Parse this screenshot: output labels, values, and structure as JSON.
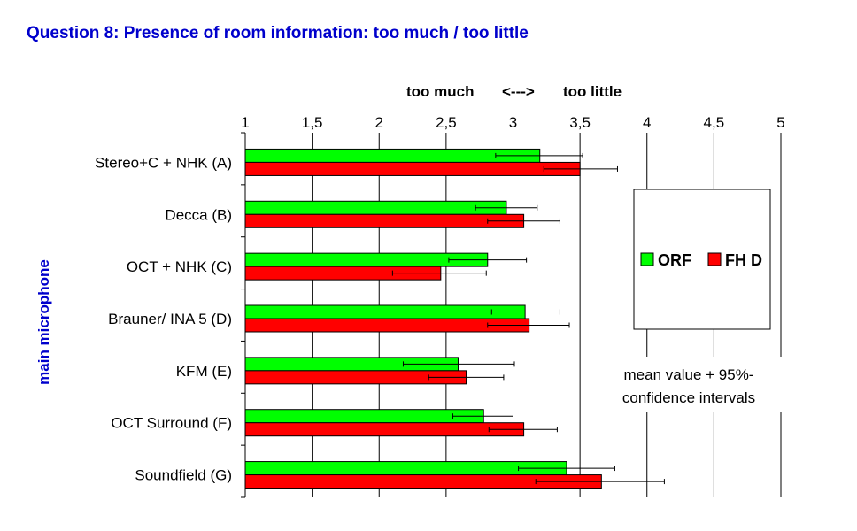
{
  "chart_data": {
    "type": "bar",
    "orientation": "horizontal",
    "title": "Question 8: Presence of room information: too much / too little",
    "ylabel": "main microphone",
    "scale_labels": {
      "left": "too much",
      "middle": "<--->",
      "right": "too little"
    },
    "xlim": [
      1,
      5
    ],
    "x_ticks": [
      1,
      1.5,
      2,
      2.5,
      3,
      3.5,
      4,
      4.5,
      5
    ],
    "x_tick_labels": [
      "1",
      "1,5",
      "2",
      "2,5",
      "3",
      "3,5",
      "4",
      "4,5",
      "5"
    ],
    "grid": "vertical",
    "categories": [
      "Stereo+C + NHK (A)",
      "Decca (B)",
      "OCT + NHK (C)",
      "Brauner/ INA 5 (D)",
      "KFM (E)",
      "OCT Surround (F)",
      "Soundfield (G)"
    ],
    "series": [
      {
        "name": "ORF",
        "color": "#00ff00",
        "values": [
          3.2,
          2.95,
          2.81,
          3.09,
          2.59,
          2.78,
          3.4
        ],
        "ci_low": [
          2.87,
          2.72,
          2.52,
          2.84,
          2.18,
          2.55,
          3.04
        ],
        "ci_high": [
          3.52,
          3.18,
          3.1,
          3.35,
          3.01,
          3.0,
          3.76
        ]
      },
      {
        "name": "FH D",
        "color": "#ff0000",
        "values": [
          3.5,
          3.08,
          2.46,
          3.12,
          2.65,
          3.08,
          3.66
        ],
        "ci_low": [
          3.23,
          2.81,
          2.1,
          2.81,
          2.37,
          2.82,
          3.17
        ],
        "ci_high": [
          3.78,
          3.35,
          2.8,
          3.42,
          2.93,
          3.33,
          4.13
        ]
      }
    ],
    "legend_position": "right",
    "annotation": [
      "mean value + 95%-",
      "confidence intervals"
    ]
  }
}
